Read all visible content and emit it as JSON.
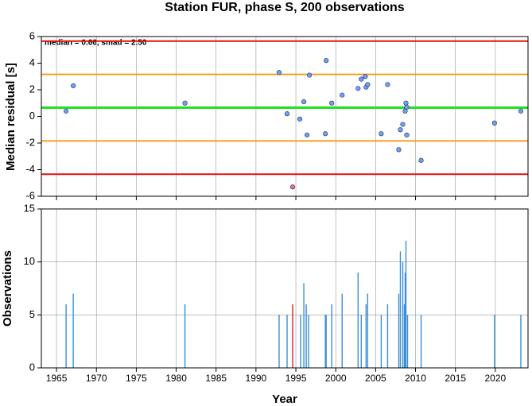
{
  "chart_data": [
    {
      "type": "scatter",
      "title": "Station FUR, phase S, 200 observations",
      "ylabel": "Median residual [s]",
      "annotation": "median = 0.66, smad = 2.50",
      "x": [
        1966.2,
        1967.1,
        1981.1,
        1992.9,
        1993.9,
        1994.6,
        1995.5,
        1996.0,
        1996.4,
        1996.7,
        1998.7,
        1998.8,
        1999.5,
        2000.8,
        2002.8,
        2003.2,
        2003.7,
        2003.8,
        2004.0,
        2005.7,
        2006.5,
        2007.9,
        2008.1,
        2008.4,
        2008.7,
        2008.8,
        2008.9,
        2008.9,
        2010.7,
        2019.9,
        2023.2
      ],
      "values": [
        0.4,
        2.3,
        1.0,
        3.3,
        0.2,
        -5.3,
        -0.2,
        1.1,
        -1.4,
        3.1,
        -1.3,
        4.2,
        1.0,
        1.6,
        2.1,
        2.8,
        3.0,
        2.2,
        2.4,
        -1.3,
        2.4,
        -2.5,
        -1.0,
        -0.6,
        0.4,
        1.0,
        -1.4,
        0.7,
        -3.3,
        -0.5,
        0.4
      ],
      "colors": [
        "#6fa0f0",
        "#6fa0f0",
        "#6fa0f0",
        "#6fa0f0",
        "#6fa0f0",
        "#f07070",
        "#6fa0f0",
        "#6fa0f0",
        "#6fa0f0",
        "#6fa0f0",
        "#6fa0f0",
        "#6fa0f0",
        "#6fa0f0",
        "#6fa0f0",
        "#6fa0f0",
        "#6fa0f0",
        "#6fa0f0",
        "#6fa0f0",
        "#6fa0f0",
        "#6fa0f0",
        "#6fa0f0",
        "#6fa0f0",
        "#6fa0f0",
        "#6fa0f0",
        "#6fa0f0",
        "#6fa0f0",
        "#6fa0f0",
        "#6fa0f0",
        "#6fa0f0",
        "#6fa0f0",
        "#6fa0f0"
      ],
      "hlines": [
        {
          "value": 5.66,
          "color": "#e01010"
        },
        {
          "value": 3.16,
          "color": "#f0a020"
        },
        {
          "value": 0.66,
          "color": "#20e020"
        },
        {
          "value": -1.84,
          "color": "#f0a020"
        },
        {
          "value": -4.34,
          "color": "#e01010"
        }
      ],
      "xlim": [
        1963.1,
        2024.1
      ],
      "xticks": [
        1965,
        1970,
        1975,
        1980,
        1985,
        1990,
        1995,
        2000,
        2005,
        2010,
        2015,
        2020
      ],
      "ylim": [
        -6,
        6
      ],
      "yticks": [
        -6,
        -4,
        -2,
        0,
        2,
        4,
        6
      ],
      "grid": true
    },
    {
      "type": "bar",
      "ylabel": "Observations",
      "xlabel": "Year",
      "x": [
        1966.2,
        1967.1,
        1981.1,
        1992.9,
        1993.9,
        1994.6,
        1995.6,
        1996.0,
        1996.3,
        1996.6,
        1998.7,
        1998.8,
        1999.5,
        2000.8,
        2002.8,
        2003.2,
        2003.8,
        2004.0,
        2005.7,
        2006.5,
        2007.9,
        2008.1,
        2008.4,
        2008.6,
        2008.7,
        2008.8,
        2009.0,
        2010.7,
        2019.9,
        2023.2
      ],
      "values": [
        6,
        7,
        6,
        5,
        5,
        6,
        5,
        8,
        6,
        5,
        5,
        5,
        6,
        7,
        9,
        5,
        6,
        7,
        5,
        6,
        7,
        11,
        10,
        6,
        9,
        12,
        5,
        5,
        5,
        5
      ],
      "colors": [
        "#3a8fd8",
        "#3a8fd8",
        "#3a8fd8",
        "#3a8fd8",
        "#3a8fd8",
        "#e02020",
        "#3a8fd8",
        "#3a8fd8",
        "#3a8fd8",
        "#3a8fd8",
        "#3a8fd8",
        "#3a8fd8",
        "#3a8fd8",
        "#3a8fd8",
        "#3a8fd8",
        "#3a8fd8",
        "#3a8fd8",
        "#3a8fd8",
        "#3a8fd8",
        "#3a8fd8",
        "#3a8fd8",
        "#3a8fd8",
        "#3a8fd8",
        "#3a8fd8",
        "#3a8fd8",
        "#3a8fd8",
        "#3a8fd8",
        "#3a8fd8",
        "#3a8fd8",
        "#3a8fd8"
      ],
      "xlim": [
        1963.1,
        2024.1
      ],
      "xticks": [
        1965,
        1970,
        1975,
        1980,
        1985,
        1990,
        1995,
        2000,
        2005,
        2010,
        2015,
        2020
      ],
      "ylim": [
        0,
        15
      ],
      "yticks": [
        0,
        5,
        10,
        15
      ],
      "grid": true
    }
  ]
}
